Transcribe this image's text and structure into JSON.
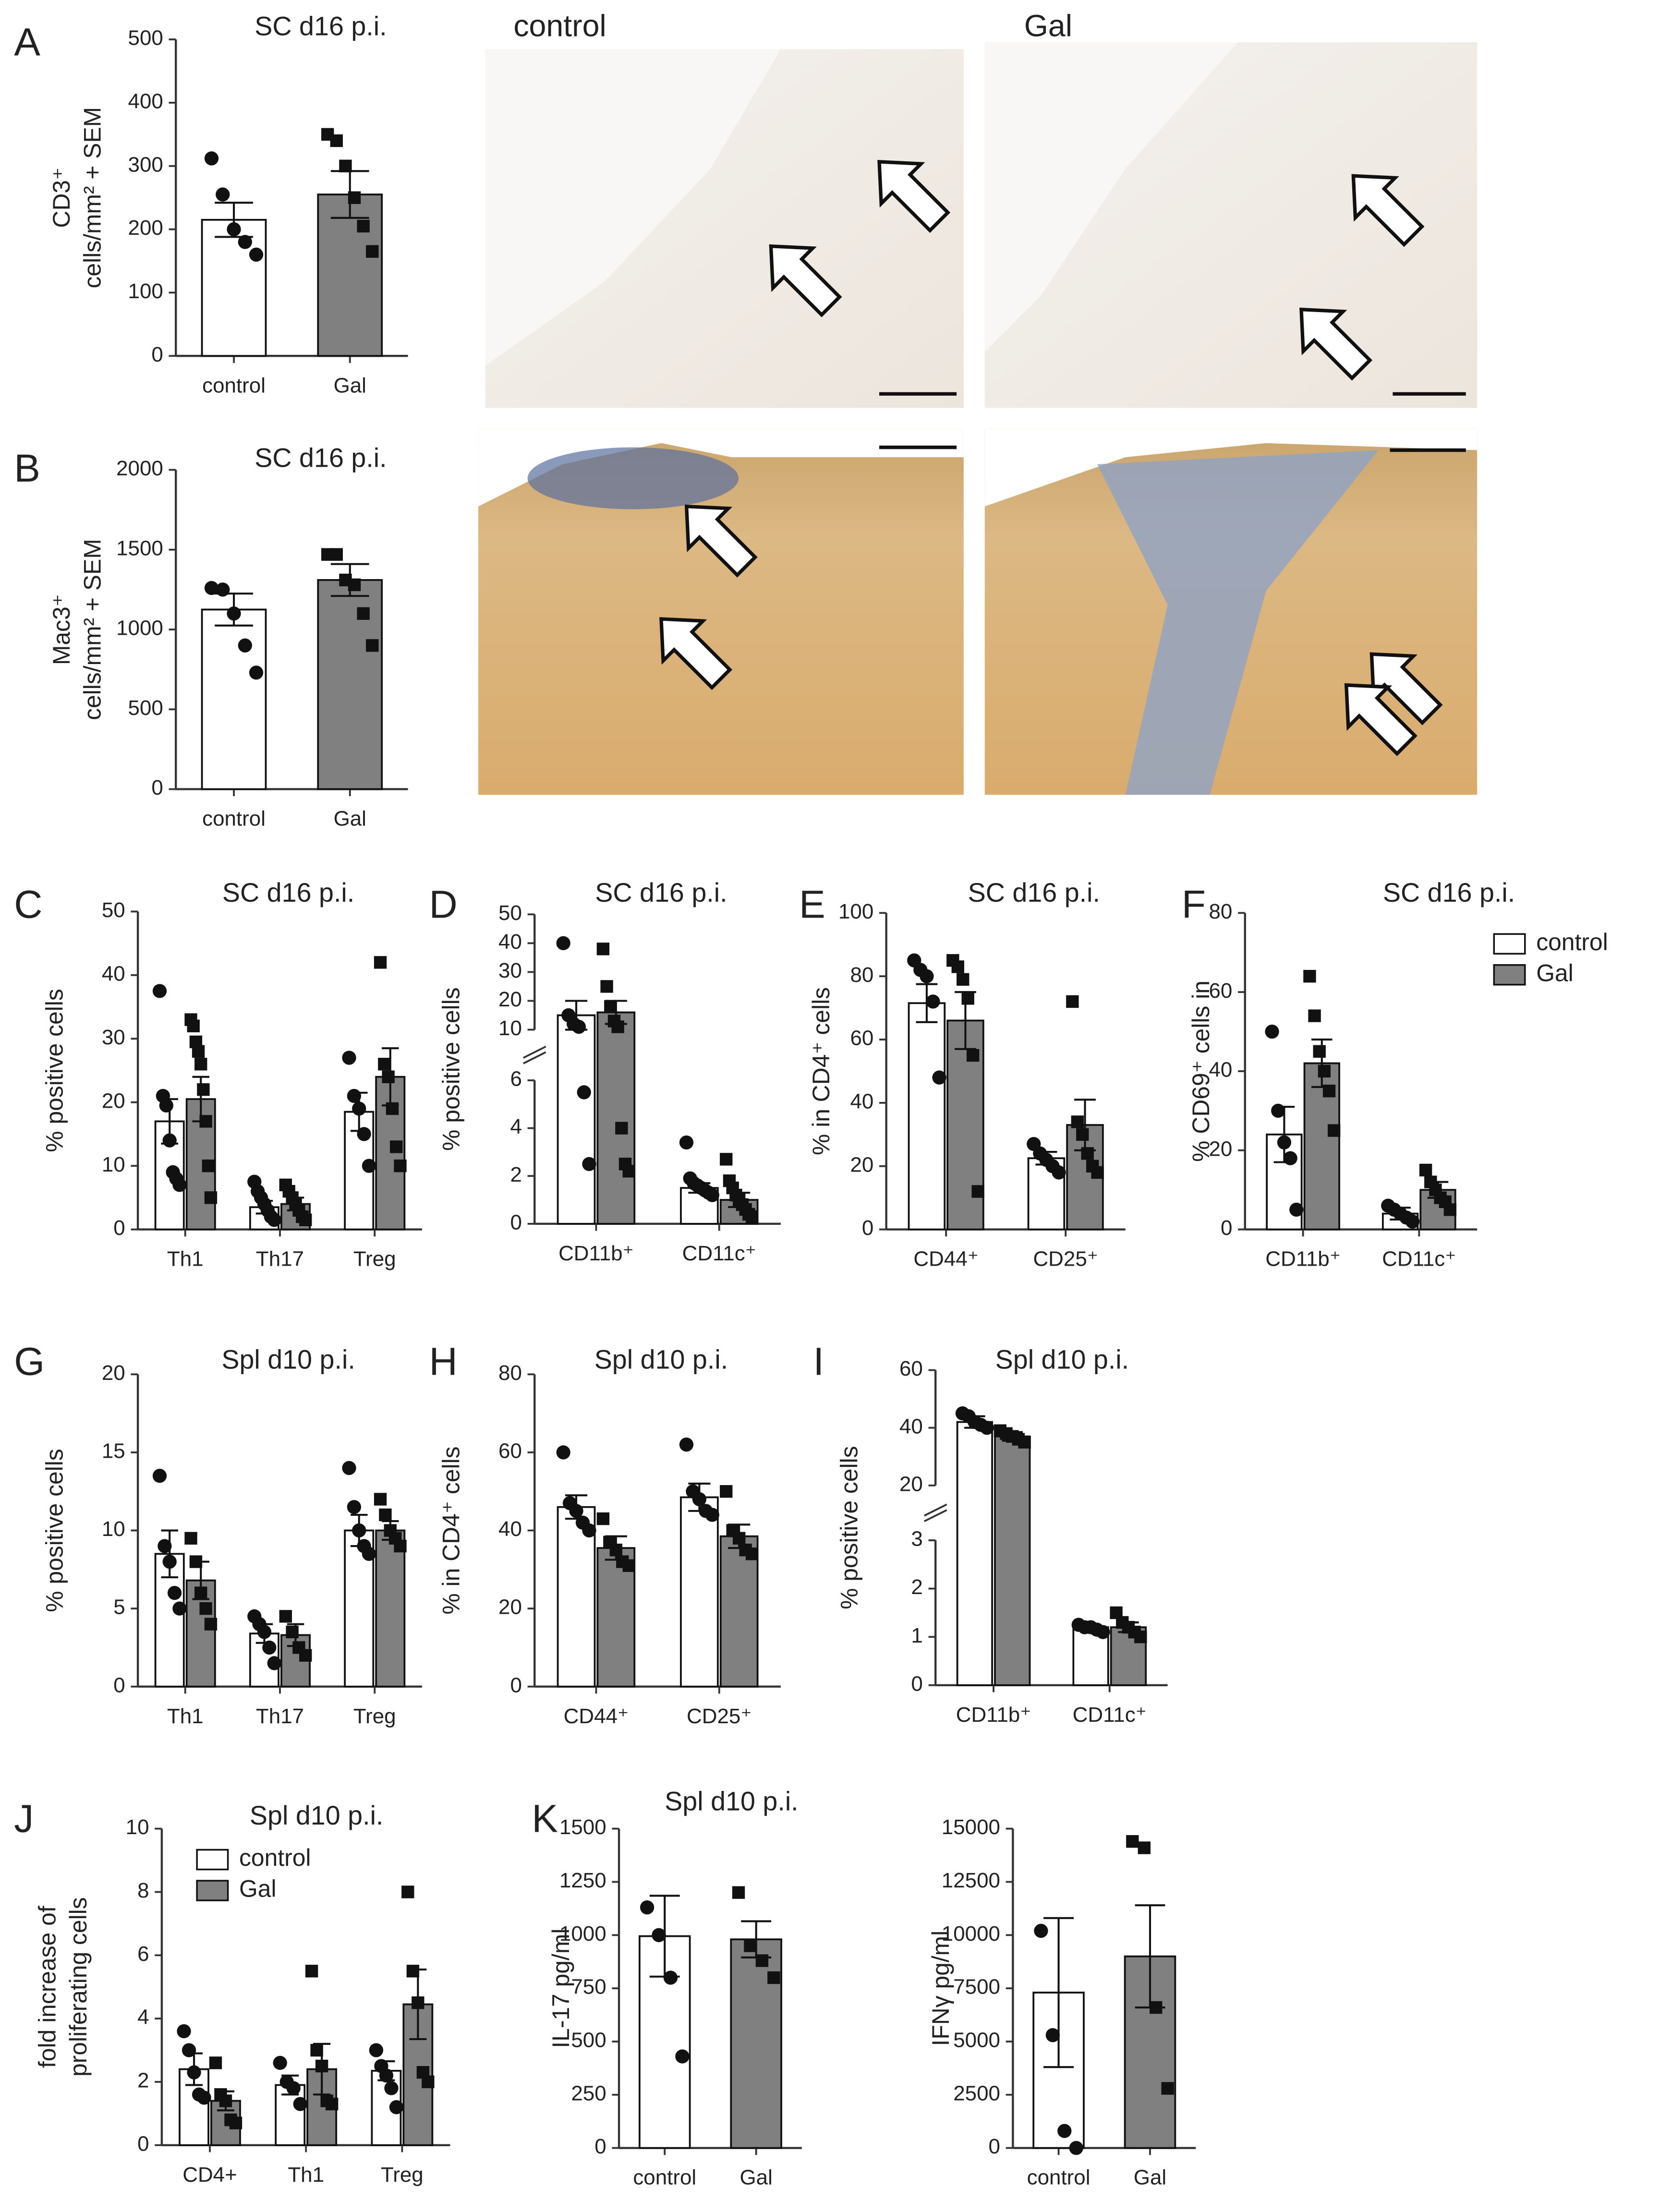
{
  "image_labels": [
    "control",
    "Gal"
  ],
  "chart_data": [
    {
      "type": "bar",
      "panel": "A",
      "title": "SC d16 p.i.",
      "ylabel": [
        "CD3⁺",
        "cells/mm² + SEM"
      ],
      "categories": [
        "control",
        "Gal"
      ],
      "values": [
        215,
        255
      ],
      "errors": [
        27,
        37
      ],
      "points": [
        [
          312,
          255,
          200,
          180,
          160
        ],
        [
          350,
          340,
          300,
          250,
          205,
          165
        ]
      ],
      "colors": [
        "#ffffff",
        "#808080"
      ],
      "markers": [
        "circle",
        "square"
      ],
      "ylim": [
        0,
        500
      ],
      "yticks": [
        0,
        100,
        200,
        300,
        400,
        500
      ]
    },
    {
      "type": "bar",
      "panel": "B",
      "title": "SC d16 p.i.",
      "ylabel": [
        "Mac3⁺",
        "cells/mm² + SEM"
      ],
      "categories": [
        "control",
        "Gal"
      ],
      "values": [
        1125,
        1310
      ],
      "errors": [
        100,
        100
      ],
      "points": [
        [
          1260,
          1250,
          1100,
          900,
          730
        ],
        [
          1470,
          1470,
          1310,
          1280,
          1100,
          900
        ]
      ],
      "colors": [
        "#ffffff",
        "#808080"
      ],
      "markers": [
        "circle",
        "square"
      ],
      "ylim": [
        0,
        2000
      ],
      "yticks": [
        0,
        500,
        1000,
        1500,
        2000
      ]
    },
    {
      "type": "grouped_bar",
      "panel": "C",
      "title": "SC d16 p.i.",
      "ylabel": [
        "% positive cells"
      ],
      "categories": [
        "Th1",
        "Th17",
        "Treg"
      ],
      "series": [
        {
          "color": "#ffffff",
          "marker": "circle",
          "values": [
            17,
            3.5,
            18.5
          ],
          "errors": [
            3.5,
            1,
            3
          ],
          "points": [
            [
              37.5,
              21,
              19.5,
              14,
              9,
              8,
              7
            ],
            [
              7.5,
              6,
              5,
              4,
              3,
              2,
              1.5
            ],
            [
              27,
              21,
              19,
              15,
              10
            ]
          ]
        },
        {
          "color": "#808080",
          "marker": "square",
          "values": [
            20.5,
            4,
            24
          ],
          "errors": [
            3.5,
            1,
            4.5
          ],
          "points": [
            [
              33,
              32,
              29.5,
              28,
              26,
              22,
              17,
              10,
              5
            ],
            [
              7,
              6,
              5,
              4,
              3,
              2,
              1.5
            ],
            [
              42,
              26,
              24,
              19,
              13,
              10
            ]
          ]
        }
      ],
      "ylim": [
        0,
        50
      ],
      "yticks": [
        0,
        10,
        20,
        30,
        40,
        50
      ]
    },
    {
      "type": "grouped_bar",
      "panel": "D",
      "title": "SC d16 p.i.",
      "ylabel": [
        "% positive cells"
      ],
      "categories": [
        "CD11b⁺",
        "CD11c⁺"
      ],
      "series": [
        {
          "color": "#ffffff",
          "marker": "circle",
          "values": [
            15,
            1.5
          ],
          "errors": [
            5,
            0.2
          ],
          "points": [
            [
              40,
              15,
              12,
              11,
              5.5,
              2.5
            ],
            [
              3.4,
              1.9,
              1.7,
              1.6,
              1.5,
              1.4,
              1.3,
              1.2
            ]
          ]
        },
        {
          "color": "#808080",
          "marker": "square",
          "values": [
            16,
            1.0
          ],
          "errors": [
            4,
            0.3
          ],
          "points": [
            [
              38,
              25,
              18,
              13,
              11,
              4,
              2.5,
              2.2
            ],
            [
              2.7,
              1.8,
              1.5,
              1.2,
              1.0,
              0.8,
              0.6,
              0.4,
              0.3
            ]
          ]
        }
      ],
      "segments": [
        {
          "ylim": [
            0,
            6
          ],
          "yticks": [
            0,
            2,
            4,
            6
          ]
        },
        {
          "ylim": [
            10,
            50
          ],
          "yticks": [
            10,
            20,
            30,
            40,
            50
          ]
        }
      ]
    },
    {
      "type": "grouped_bar",
      "panel": "E",
      "title": "SC d16 p.i.",
      "ylabel": [
        "% in CD4⁺ cells"
      ],
      "categories": [
        "CD44⁺",
        "CD25⁺"
      ],
      "series": [
        {
          "color": "#ffffff",
          "marker": "circle",
          "values": [
            71.5,
            22.5
          ],
          "errors": [
            6,
            2
          ],
          "points": [
            [
              85,
              82,
              80,
              72,
              48
            ],
            [
              27,
              24,
              22,
              20,
              18
            ]
          ]
        },
        {
          "color": "#808080",
          "marker": "square",
          "values": [
            66,
            33
          ],
          "errors": [
            9,
            8
          ],
          "points": [
            [
              85,
              83,
              79,
              73,
              55,
              12
            ],
            [
              72,
              34,
              30,
              24,
              20,
              18
            ]
          ]
        }
      ],
      "ylim": [
        0,
        100
      ],
      "yticks": [
        0,
        20,
        40,
        60,
        80,
        100
      ]
    },
    {
      "type": "grouped_bar",
      "panel": "F",
      "title": "SC d16 p.i.",
      "ylabel": [
        "% CD69⁺ cells in"
      ],
      "categories": [
        "CD11b⁺",
        "CD11c⁺"
      ],
      "legend": "upper right",
      "series": [
        {
          "name": "control",
          "color": "#ffffff",
          "marker": "circle",
          "values": [
            24,
            4
          ],
          "errors": [
            7,
            1.5
          ],
          "points": [
            [
              50,
              30,
              22,
              18,
              5
            ],
            [
              6,
              5,
              4,
              3,
              2
            ]
          ]
        },
        {
          "name": "Gal",
          "color": "#808080",
          "marker": "square",
          "values": [
            42,
            10
          ],
          "errors": [
            6,
            2
          ],
          "points": [
            [
              64,
              54,
              45,
              40,
              35,
              25
            ],
            [
              15,
              12,
              10,
              8,
              7,
              5
            ]
          ]
        }
      ],
      "ylim": [
        0,
        80
      ],
      "yticks": [
        0,
        20,
        40,
        60,
        80
      ]
    },
    {
      "type": "grouped_bar",
      "panel": "G",
      "title": "Spl d10 p.i.",
      "ylabel": [
        "% positive cells"
      ],
      "categories": [
        "Th1",
        "Th17",
        "Treg"
      ],
      "series": [
        {
          "color": "#ffffff",
          "marker": "circle",
          "values": [
            8.5,
            3.4,
            10
          ],
          "errors": [
            1.5,
            0.6,
            1
          ],
          "points": [
            [
              13.5,
              9,
              8,
              6,
              5
            ],
            [
              4.5,
              4,
              3.5,
              2.5,
              1.5
            ],
            [
              14,
              11.5,
              10,
              9,
              8.5
            ]
          ]
        },
        {
          "color": "#808080",
          "marker": "square",
          "values": [
            6.8,
            3.3,
            10
          ],
          "errors": [
            1.2,
            0.7,
            0.6
          ],
          "points": [
            [
              9.5,
              8,
              6,
              5,
              4
            ],
            [
              4.5,
              3.5,
              2.5,
              2
            ],
            [
              12,
              11,
              10,
              9.5,
              9
            ]
          ]
        }
      ],
      "ylim": [
        0,
        20
      ],
      "yticks": [
        0,
        5,
        10,
        15,
        20
      ]
    },
    {
      "type": "grouped_bar",
      "panel": "H",
      "title": "Spl d10 p.i.",
      "ylabel": [
        "% in CD4⁺ cells"
      ],
      "categories": [
        "CD44⁺",
        "CD25⁺"
      ],
      "series": [
        {
          "color": "#ffffff",
          "marker": "circle",
          "values": [
            46,
            48.5
          ],
          "errors": [
            3,
            3.5
          ],
          "points": [
            [
              60,
              47,
              45,
              42,
              40
            ],
            [
              62,
              50,
              48,
              45,
              44
            ]
          ]
        },
        {
          "color": "#808080",
          "marker": "square",
          "values": [
            35.5,
            38.5
          ],
          "errors": [
            3,
            3
          ],
          "points": [
            [
              43,
              37,
              35,
              32,
              31
            ],
            [
              50,
              40,
              38,
              35,
              34
            ]
          ]
        }
      ],
      "ylim": [
        0,
        80
      ],
      "yticks": [
        0,
        20,
        40,
        60,
        80
      ]
    },
    {
      "type": "grouped_bar",
      "panel": "I",
      "title": "Spl d10 p.i.",
      "ylabel": [
        "% positive cells"
      ],
      "categories": [
        "CD11b⁺",
        "CD11c⁺"
      ],
      "series": [
        {
          "color": "#ffffff",
          "marker": "circle",
          "values": [
            42,
            1.2
          ],
          "errors": [
            2,
            0.05
          ],
          "points": [
            [
              45,
              44,
              42,
              41,
              40
            ],
            [
              1.25,
              1.2,
              1.2,
              1.15,
              1.1
            ]
          ]
        },
        {
          "color": "#808080",
          "marker": "square",
          "values": [
            37,
            1.2
          ],
          "errors": [
            1.5,
            0.1
          ],
          "points": [
            [
              39,
              38,
              37,
              36,
              35
            ],
            [
              1.5,
              1.3,
              1.2,
              1.1,
              1.0
            ]
          ]
        }
      ],
      "segments": [
        {
          "ylim": [
            0,
            3
          ],
          "yticks": [
            0,
            1,
            2,
            3
          ]
        },
        {
          "ylim": [
            20,
            60
          ],
          "yticks": [
            20,
            40,
            60
          ]
        }
      ]
    },
    {
      "type": "grouped_bar",
      "panel": "J",
      "title": "Spl d10 p.i.",
      "ylabel": [
        "fold increase of",
        "proliferating cells"
      ],
      "categories": [
        "CD4+",
        "Th1",
        "Treg"
      ],
      "legend": "upper left",
      "series": [
        {
          "name": "control",
          "color": "#ffffff",
          "marker": "circle",
          "values": [
            2.4,
            1.9,
            2.35
          ],
          "errors": [
            0.5,
            0.3,
            0.3
          ],
          "points": [
            [
              3.6,
              3.0,
              2.3,
              1.6,
              1.5
            ],
            [
              2.6,
              2.0,
              1.8,
              1.3
            ],
            [
              3.0,
              2.5,
              2.2,
              1.8,
              1.2
            ]
          ]
        },
        {
          "name": "Gal",
          "color": "#808080",
          "marker": "square",
          "values": [
            1.4,
            2.4,
            4.45
          ],
          "errors": [
            0.3,
            0.8,
            1.1
          ],
          "points": [
            [
              2.6,
              1.6,
              1.4,
              0.8,
              0.7
            ],
            [
              5.5,
              3.0,
              2.5,
              1.4,
              1.3
            ],
            [
              8.0,
              5.5,
              4.5,
              2.3,
              2.0
            ]
          ]
        }
      ],
      "ylim": [
        0,
        10
      ],
      "yticks": [
        0,
        2,
        4,
        6,
        8,
        10
      ]
    },
    {
      "type": "bar",
      "panel": "K",
      "title": "Spl d10 p.i.",
      "ylabel": [
        "IL-17 pg/ml"
      ],
      "categories": [
        "control",
        "Gal"
      ],
      "values": [
        995,
        980
      ],
      "errors": [
        190,
        85
      ],
      "points": [
        [
          1130,
          1000,
          800,
          430
        ],
        [
          1200,
          950,
          880,
          800
        ]
      ],
      "colors": [
        "#ffffff",
        "#808080"
      ],
      "markers": [
        "circle",
        "square"
      ],
      "ylim": [
        0,
        1500
      ],
      "yticks": [
        0,
        250,
        500,
        750,
        1000,
        1250,
        1500
      ]
    },
    {
      "type": "bar",
      "ylabel": [
        "IFNγ pg/ml"
      ],
      "categories": [
        "control",
        "Gal"
      ],
      "values": [
        7300,
        9000
      ],
      "errors": [
        3500,
        2400
      ],
      "points": [
        [
          10200,
          5300,
          800,
          0
        ],
        [
          14400,
          14100,
          6600,
          2800
        ]
      ],
      "colors": [
        "#ffffff",
        "#808080"
      ],
      "markers": [
        "circle",
        "square"
      ],
      "ylim": [
        0,
        15000
      ],
      "yticks": [
        0,
        2500,
        5000,
        7500,
        10000,
        12500,
        15000
      ]
    }
  ]
}
